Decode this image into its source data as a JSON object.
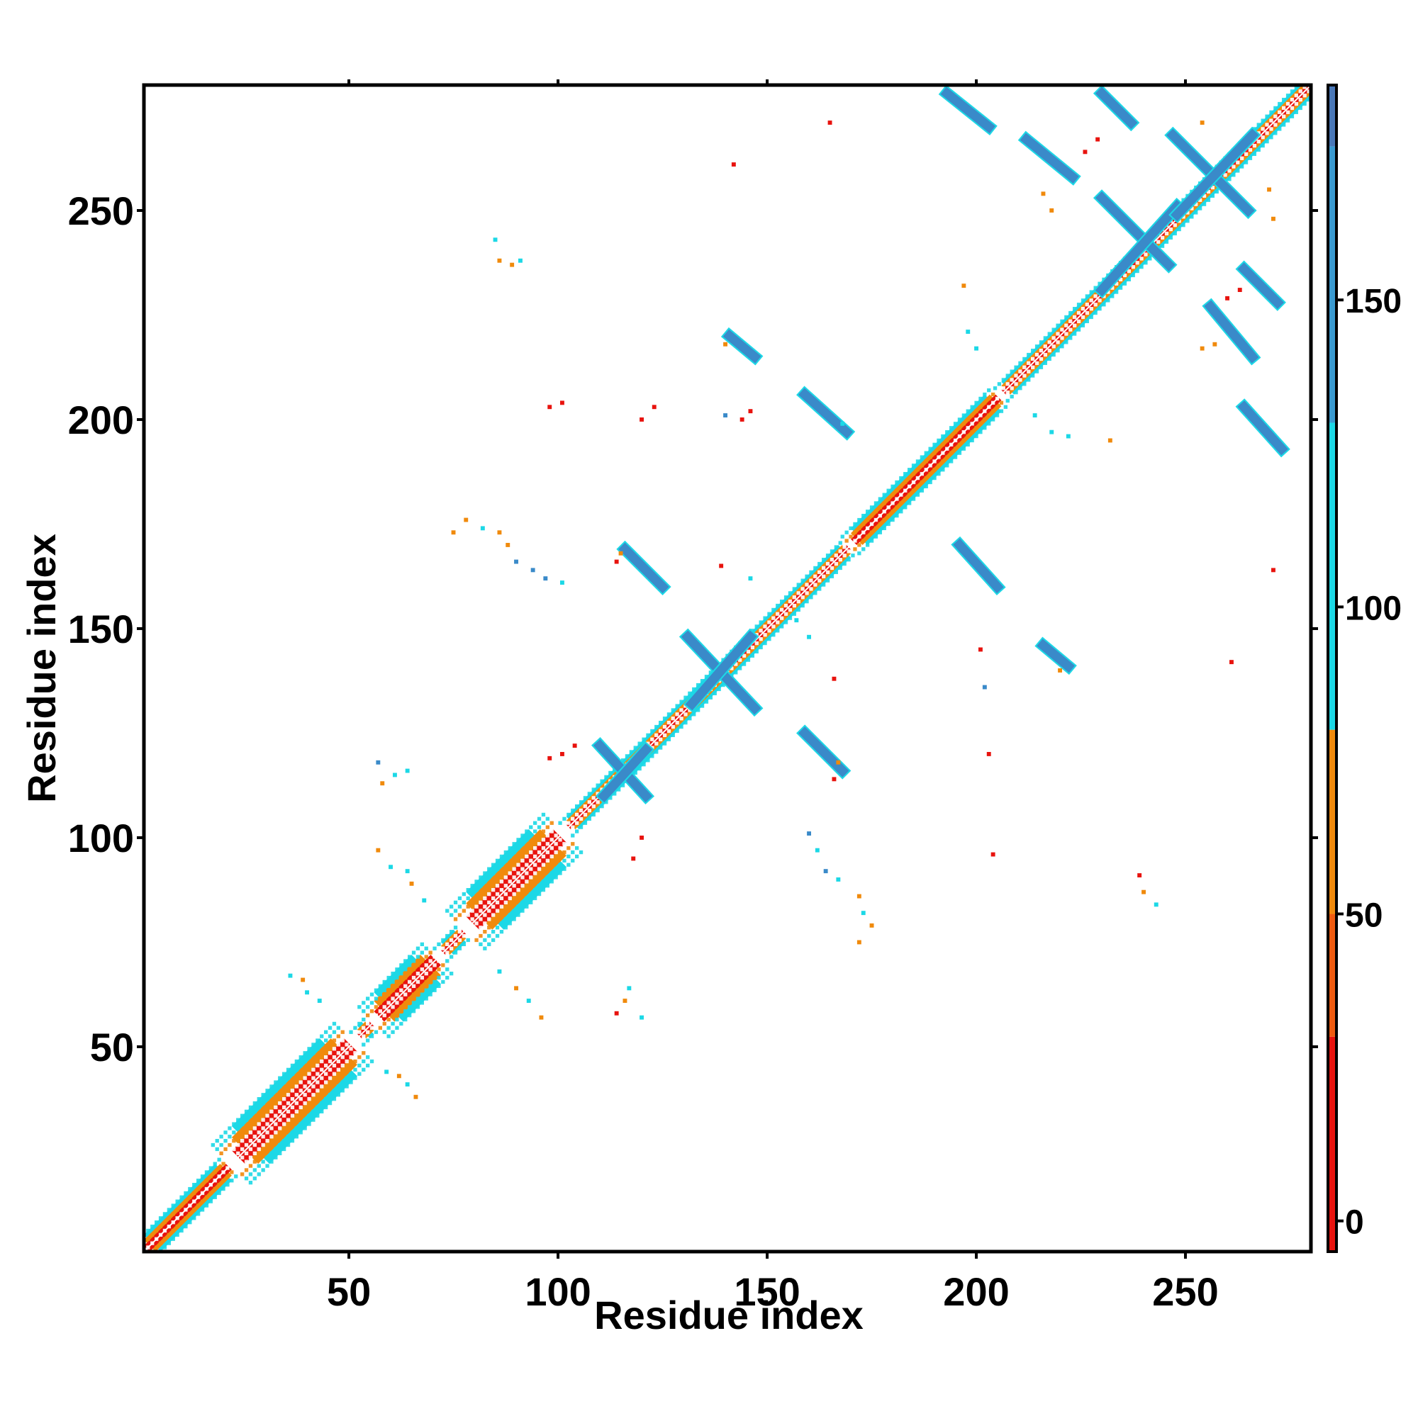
{
  "chart_data": {
    "type": "heatmap",
    "title": "",
    "xlabel": "Residue index",
    "ylabel": "Residue index",
    "xlim": [
      1,
      280
    ],
    "ylim": [
      1,
      280
    ],
    "x_ticks": [
      50,
      100,
      150,
      200,
      250
    ],
    "y_ticks": [
      50,
      100,
      150,
      200,
      250
    ],
    "colorbar": {
      "ticks": [
        0,
        50,
        100,
        150
      ],
      "range": [
        -5,
        185
      ],
      "bands": [
        {
          "from": -5,
          "to": 30,
          "color": "#e8130e"
        },
        {
          "from": 30,
          "to": 50,
          "color": "#ef5b10"
        },
        {
          "from": 50,
          "to": 80,
          "color": "#f08a0c"
        },
        {
          "from": 80,
          "to": 130,
          "color": "#1cd8e6"
        },
        {
          "from": 130,
          "to": 175,
          "color": "#3a9ad0"
        },
        {
          "from": 175,
          "to": 185,
          "color": "#4a78b8"
        }
      ]
    },
    "diagonal": [
      {
        "from": 1,
        "to": 22,
        "halfwidth": 4
      },
      {
        "from": 22,
        "to": 52,
        "halfwidth": 9
      },
      {
        "from": 52,
        "to": 56,
        "halfwidth": 3
      },
      {
        "from": 56,
        "to": 72,
        "halfwidth": 7
      },
      {
        "from": 72,
        "to": 78,
        "halfwidth": 3
      },
      {
        "from": 78,
        "to": 102,
        "halfwidth": 9
      },
      {
        "from": 102,
        "to": 170,
        "halfwidth": 3
      },
      {
        "from": 170,
        "to": 206,
        "halfwidth": 4
      },
      {
        "from": 206,
        "to": 280,
        "halfwidth": 3
      }
    ],
    "strand_segments": [
      {
        "x1": 110,
        "y1": 122,
        "x2": 121,
        "y2": 110,
        "color": "#3a8ac9"
      },
      {
        "x1": 131,
        "y1": 148,
        "x2": 147,
        "y2": 131,
        "color": "#3a8ac9"
      },
      {
        "x1": 116,
        "y1": 169,
        "x2": 125,
        "y2": 160,
        "color": "#3a8ac9"
      },
      {
        "x1": 141,
        "y1": 220,
        "x2": 147,
        "y2": 215,
        "color": "#3a8ac9"
      },
      {
        "x1": 159,
        "y1": 206,
        "x2": 169,
        "y2": 197,
        "color": "#3a8ac9"
      },
      {
        "x1": 159,
        "y1": 125,
        "x2": 168,
        "y2": 116,
        "color": "#3a8ac9"
      },
      {
        "x1": 196,
        "y1": 170,
        "x2": 205,
        "y2": 160,
        "color": "#3a8ac9"
      },
      {
        "x1": 216,
        "y1": 146,
        "x2": 222,
        "y2": 141,
        "color": "#3a8ac9"
      },
      {
        "x1": 193,
        "y1": 278,
        "x2": 203,
        "y2": 270,
        "color": "#3a8ac9"
      },
      {
        "x1": 212,
        "y1": 267,
        "x2": 223,
        "y2": 258,
        "color": "#3a8ac9"
      },
      {
        "x1": 230,
        "y1": 278,
        "x2": 237,
        "y2": 271,
        "color": "#3a8ac9"
      },
      {
        "x1": 230,
        "y1": 253,
        "x2": 246,
        "y2": 237,
        "color": "#3a8ac9"
      },
      {
        "x1": 247,
        "y1": 268,
        "x2": 265,
        "y2": 250,
        "color": "#3a8ac9"
      },
      {
        "x1": 256,
        "y1": 227,
        "x2": 266,
        "y2": 215,
        "color": "#3a8ac9"
      },
      {
        "x1": 264,
        "y1": 236,
        "x2": 272,
        "y2": 228,
        "color": "#3a8ac9"
      },
      {
        "x1": 264,
        "y1": 203,
        "x2": 273,
        "y2": 193,
        "color": "#3a8ac9"
      }
    ],
    "cross_segments": [
      {
        "x1": 111,
        "y1": 110,
        "x2": 121,
        "y2": 121,
        "color": "#3a8ac9"
      },
      {
        "x1": 132,
        "y1": 132,
        "x2": 146,
        "y2": 148,
        "color": "#3a8ac9"
      },
      {
        "x1": 230,
        "y1": 231,
        "x2": 248,
        "y2": 251,
        "color": "#3a8ac9"
      },
      {
        "x1": 248,
        "y1": 249,
        "x2": 266,
        "y2": 268,
        "color": "#3a8ac9"
      }
    ],
    "scattered_contacts": [
      {
        "x": 165,
        "y": 271,
        "color": "#e8130e"
      },
      {
        "x": 142,
        "y": 261,
        "color": "#e8130e"
      },
      {
        "x": 85,
        "y": 243,
        "color": "#1cd8e6"
      },
      {
        "x": 86,
        "y": 238,
        "color": "#f08a0c"
      },
      {
        "x": 89,
        "y": 237,
        "color": "#f08a0c"
      },
      {
        "x": 91,
        "y": 238,
        "color": "#1cd8e6"
      },
      {
        "x": 197,
        "y": 232,
        "color": "#f08a0c"
      },
      {
        "x": 198,
        "y": 221,
        "color": "#1cd8e6"
      },
      {
        "x": 200,
        "y": 217,
        "color": "#1cd8e6"
      },
      {
        "x": 98,
        "y": 203,
        "color": "#e8130e"
      },
      {
        "x": 101,
        "y": 204,
        "color": "#e8130e"
      },
      {
        "x": 120,
        "y": 200,
        "color": "#e8130e"
      },
      {
        "x": 123,
        "y": 203,
        "color": "#e8130e"
      },
      {
        "x": 140,
        "y": 201,
        "color": "#3a8ac9"
      },
      {
        "x": 144,
        "y": 200,
        "color": "#e8130e"
      },
      {
        "x": 146,
        "y": 202,
        "color": "#e8130e"
      },
      {
        "x": 218,
        "y": 197,
        "color": "#1cd8e6"
      },
      {
        "x": 222,
        "y": 196,
        "color": "#1cd8e6"
      },
      {
        "x": 232,
        "y": 195,
        "color": "#f08a0c"
      },
      {
        "x": 75,
        "y": 173,
        "color": "#f08a0c"
      },
      {
        "x": 78,
        "y": 176,
        "color": "#f08a0c"
      },
      {
        "x": 82,
        "y": 174,
        "color": "#1cd8e6"
      },
      {
        "x": 86,
        "y": 173,
        "color": "#f08a0c"
      },
      {
        "x": 88,
        "y": 170,
        "color": "#f08a0c"
      },
      {
        "x": 90,
        "y": 166,
        "color": "#3a8ac9"
      },
      {
        "x": 94,
        "y": 164,
        "color": "#3a8ac9"
      },
      {
        "x": 97,
        "y": 162,
        "color": "#3a8ac9"
      },
      {
        "x": 101,
        "y": 161,
        "color": "#1cd8e6"
      },
      {
        "x": 114,
        "y": 166,
        "color": "#e8130e"
      },
      {
        "x": 139,
        "y": 165,
        "color": "#e8130e"
      },
      {
        "x": 146,
        "y": 162,
        "color": "#1cd8e6"
      },
      {
        "x": 157,
        "y": 152,
        "color": "#1cd8e6"
      },
      {
        "x": 160,
        "y": 148,
        "color": "#1cd8e6"
      },
      {
        "x": 271,
        "y": 164,
        "color": "#e8130e"
      },
      {
        "x": 201,
        "y": 145,
        "color": "#e8130e"
      },
      {
        "x": 202,
        "y": 136,
        "color": "#3a8ac9"
      },
      {
        "x": 166,
        "y": 138,
        "color": "#e8130e"
      },
      {
        "x": 261,
        "y": 142,
        "color": "#e8130e"
      },
      {
        "x": 57,
        "y": 118,
        "color": "#3a8ac9"
      },
      {
        "x": 58,
        "y": 113,
        "color": "#f08a0c"
      },
      {
        "x": 61,
        "y": 115,
        "color": "#1cd8e6"
      },
      {
        "x": 64,
        "y": 116,
        "color": "#1cd8e6"
      },
      {
        "x": 98,
        "y": 119,
        "color": "#e8130e"
      },
      {
        "x": 101,
        "y": 120,
        "color": "#e8130e"
      },
      {
        "x": 104,
        "y": 122,
        "color": "#e8130e"
      },
      {
        "x": 166,
        "y": 114,
        "color": "#e8130e"
      },
      {
        "x": 203,
        "y": 120,
        "color": "#e8130e"
      },
      {
        "x": 120,
        "y": 100,
        "color": "#e8130e"
      },
      {
        "x": 118,
        "y": 95,
        "color": "#e8130e"
      },
      {
        "x": 160,
        "y": 101,
        "color": "#3a8ac9"
      },
      {
        "x": 162,
        "y": 97,
        "color": "#1cd8e6"
      },
      {
        "x": 164,
        "y": 92,
        "color": "#3a8ac9"
      },
      {
        "x": 167,
        "y": 90,
        "color": "#1cd8e6"
      },
      {
        "x": 204,
        "y": 96,
        "color": "#e8130e"
      },
      {
        "x": 57,
        "y": 97,
        "color": "#f08a0c"
      },
      {
        "x": 60,
        "y": 93,
        "color": "#1cd8e6"
      },
      {
        "x": 64,
        "y": 92,
        "color": "#1cd8e6"
      },
      {
        "x": 65,
        "y": 89,
        "color": "#f08a0c"
      },
      {
        "x": 68,
        "y": 85,
        "color": "#1cd8e6"
      },
      {
        "x": 172,
        "y": 86,
        "color": "#f08a0c"
      },
      {
        "x": 173,
        "y": 82,
        "color": "#1cd8e6"
      },
      {
        "x": 175,
        "y": 79,
        "color": "#f08a0c"
      },
      {
        "x": 172,
        "y": 75,
        "color": "#f08a0c"
      },
      {
        "x": 239,
        "y": 91,
        "color": "#e8130e"
      },
      {
        "x": 240,
        "y": 87,
        "color": "#f08a0c"
      },
      {
        "x": 243,
        "y": 84,
        "color": "#1cd8e6"
      },
      {
        "x": 36,
        "y": 67,
        "color": "#1cd8e6"
      },
      {
        "x": 39,
        "y": 66,
        "color": "#f08a0c"
      },
      {
        "x": 40,
        "y": 63,
        "color": "#1cd8e6"
      },
      {
        "x": 43,
        "y": 61,
        "color": "#1cd8e6"
      },
      {
        "x": 86,
        "y": 68,
        "color": "#1cd8e6"
      },
      {
        "x": 90,
        "y": 64,
        "color": "#f08a0c"
      },
      {
        "x": 93,
        "y": 61,
        "color": "#1cd8e6"
      },
      {
        "x": 96,
        "y": 57,
        "color": "#f08a0c"
      },
      {
        "x": 114,
        "y": 58,
        "color": "#e8130e"
      },
      {
        "x": 116,
        "y": 61,
        "color": "#f08a0c"
      },
      {
        "x": 117,
        "y": 64,
        "color": "#1cd8e6"
      },
      {
        "x": 120,
        "y": 57,
        "color": "#1cd8e6"
      },
      {
        "x": 59,
        "y": 44,
        "color": "#1cd8e6"
      },
      {
        "x": 62,
        "y": 43,
        "color": "#f08a0c"
      },
      {
        "x": 64,
        "y": 41,
        "color": "#1cd8e6"
      },
      {
        "x": 66,
        "y": 38,
        "color": "#f08a0c"
      },
      {
        "x": 214,
        "y": 201,
        "color": "#1cd8e6"
      },
      {
        "x": 270,
        "y": 255,
        "color": "#f08a0c"
      },
      {
        "x": 271,
        "y": 248,
        "color": "#f08a0c"
      },
      {
        "x": 254,
        "y": 271,
        "color": "#f08a0c"
      },
      {
        "x": 254,
        "y": 217,
        "color": "#f08a0c"
      },
      {
        "x": 226,
        "y": 264,
        "color": "#e8130e"
      },
      {
        "x": 229,
        "y": 267,
        "color": "#e8130e"
      },
      {
        "x": 218,
        "y": 250,
        "color": "#f08a0c"
      },
      {
        "x": 216,
        "y": 254,
        "color": "#f08a0c"
      },
      {
        "x": 260,
        "y": 229,
        "color": "#e8130e"
      },
      {
        "x": 263,
        "y": 231,
        "color": "#e8130e"
      },
      {
        "x": 257,
        "y": 218,
        "color": "#f08a0c"
      },
      {
        "x": 140,
        "y": 218,
        "color": "#f08a0c"
      },
      {
        "x": 167,
        "y": 118,
        "color": "#f08a0c"
      },
      {
        "x": 168,
        "y": 199,
        "color": "#1cd8e6"
      },
      {
        "x": 220,
        "y": 140,
        "color": "#f08a0c"
      },
      {
        "x": 115,
        "y": 168,
        "color": "#f08a0c"
      }
    ]
  }
}
